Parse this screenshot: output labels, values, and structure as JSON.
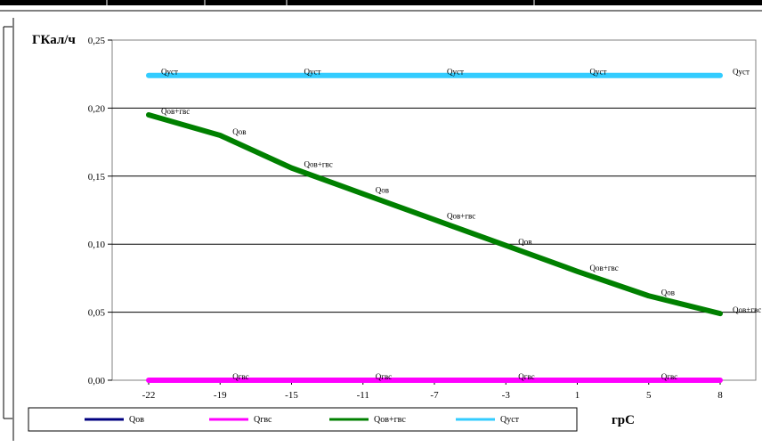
{
  "chart_data": {
    "type": "line",
    "ylabel": "ГКал/ч",
    "xlabel": "грС",
    "x_ticks": [
      "-22",
      "-19",
      "-15",
      "-11",
      "-7",
      "-3",
      "1",
      "5",
      "8"
    ],
    "y_ticks": [
      "0,00",
      "0,05",
      "0,10",
      "0,15",
      "0,20",
      "0,25"
    ],
    "ylim": [
      0,
      0.25
    ],
    "grid": true,
    "legend_position": "bottom",
    "series": [
      {
        "name": "Qов",
        "color": "#000080",
        "values": [],
        "labels": []
      },
      {
        "name": "Qгвс",
        "color": "#ff00ff",
        "values": [
          0,
          0,
          0,
          0,
          0,
          0,
          0,
          0,
          0
        ],
        "labels": [
          "",
          "Qгвс",
          "",
          "Qгвс",
          "",
          "Qгвс",
          "",
          "Qгвс",
          ""
        ]
      },
      {
        "name": "Qов+гвс",
        "color": "#008000",
        "values": [
          0.195,
          0.18,
          0.156,
          0.137,
          0.118,
          0.099,
          0.08,
          0.062,
          0.049
        ],
        "labels": [
          "Qов+гвс",
          "Qов",
          "Qов+гвс",
          "Qов",
          "Qов+гвс",
          "Qов",
          "Qов+гвс",
          "Qов",
          "Qов+гвс"
        ]
      },
      {
        "name": "Qуст",
        "color": "#33ccff",
        "values": [
          0.224,
          0.224,
          0.224,
          0.224,
          0.224,
          0.224,
          0.224,
          0.224,
          0.224
        ],
        "labels": [
          "Qуст",
          "",
          "Qуст",
          "",
          "Qуст",
          "",
          "Qуст",
          "",
          "Qуст"
        ]
      }
    ]
  }
}
